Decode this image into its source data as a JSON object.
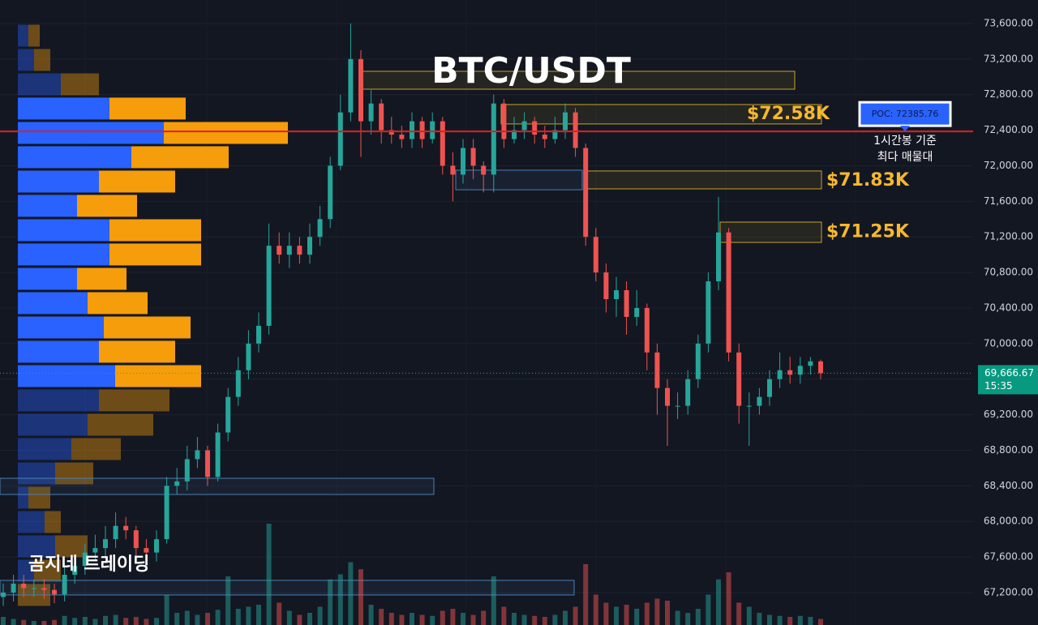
{
  "chart_data": {
    "type": "candlestick",
    "title": "BTC/USDT",
    "watermark": "곰지네 트레이딩",
    "ylim": [
      66835,
      73864
    ],
    "yticks": [
      {
        "value": 73600,
        "label": "73,600.00"
      },
      {
        "value": 73200,
        "label": "73,200.00"
      },
      {
        "value": 72800,
        "label": "72,800.00"
      },
      {
        "value": 72400,
        "label": "72,400.00"
      },
      {
        "value": 72000,
        "label": "72,000.00"
      },
      {
        "value": 71600,
        "label": "71,600.00"
      },
      {
        "value": 71200,
        "label": "71,200.00"
      },
      {
        "value": 70800,
        "label": "70,800.00"
      },
      {
        "value": 70400,
        "label": "70,400.00"
      },
      {
        "value": 70000,
        "label": "70,000.00"
      },
      {
        "value": 69600,
        "label": "69,600.00"
      },
      {
        "value": 69200,
        "label": "69,200.00"
      },
      {
        "value": 68800,
        "label": "68,800.00"
      },
      {
        "value": 68400,
        "label": "68,400.00"
      },
      {
        "value": 68000,
        "label": "68,000.00"
      },
      {
        "value": 67600,
        "label": "67,600.00"
      },
      {
        "value": 67200,
        "label": "67,200.00"
      }
    ],
    "up_color": "#26a69a",
    "down_color": "#ef5350",
    "open": [
      67150,
      67200,
      67300,
      67250,
      67250,
      67230,
      67180,
      67400,
      67500,
      67650,
      67700,
      67800,
      67950,
      67900,
      67700,
      67650,
      67800,
      68400,
      68450,
      68700,
      68800,
      68500,
      69000,
      69400,
      69700,
      70000,
      70200,
      71100,
      71000,
      71100,
      71000,
      71200,
      71400,
      72000,
      72600,
      73200,
      72500,
      72700,
      72400,
      72350,
      72300,
      72500,
      72300,
      72500,
      72000,
      71900,
      72200,
      72000,
      71900,
      72700,
      72300,
      72400,
      72500,
      72350,
      72300,
      72400,
      72600,
      72200,
      71200,
      70800,
      70500,
      70600,
      70300,
      70400,
      69900,
      69500,
      69300,
      69300,
      69600,
      70000,
      70700,
      71250,
      69900,
      69300,
      69300,
      69400,
      69600,
      69700,
      69650,
      69750,
      69800
    ],
    "high": [
      67300,
      67400,
      67400,
      67350,
      67350,
      67300,
      67500,
      67600,
      67750,
      67850,
      67950,
      68100,
      68050,
      67950,
      67800,
      67900,
      68500,
      68600,
      68850,
      68950,
      68850,
      69100,
      69500,
      69850,
      70150,
      70350,
      71350,
      71250,
      71250,
      71200,
      71350,
      71550,
      72100,
      72800,
      73600,
      73300,
      72850,
      72750,
      72550,
      72450,
      72600,
      72550,
      72600,
      72550,
      72150,
      72300,
      72300,
      72050,
      72800,
      72750,
      72550,
      72600,
      72550,
      72450,
      72550,
      72700,
      72650,
      72250,
      71300,
      70900,
      70750,
      70700,
      70600,
      70450,
      70000,
      69600,
      69450,
      69700,
      70100,
      70800,
      71650,
      71300,
      70000,
      69450,
      69500,
      69700,
      69900,
      69850,
      69850,
      69850,
      69820
    ],
    "low": [
      67050,
      67100,
      67150,
      67150,
      67130,
      67080,
      67100,
      67300,
      67400,
      67550,
      67600,
      67700,
      67800,
      67600,
      67550,
      67550,
      67750,
      68300,
      68350,
      68600,
      68400,
      68450,
      68900,
      69300,
      69600,
      69900,
      70100,
      70900,
      70850,
      70900,
      70900,
      71100,
      71300,
      71950,
      72500,
      72100,
      72350,
      72250,
      72250,
      72200,
      72200,
      72200,
      72250,
      71900,
      71600,
      71800,
      71850,
      71700,
      71700,
      72200,
      72250,
      72300,
      72250,
      72200,
      72250,
      72300,
      72100,
      71100,
      70700,
      70350,
      70300,
      70100,
      70200,
      69700,
      69200,
      68850,
      69150,
      69200,
      69500,
      69900,
      70600,
      69800,
      69100,
      68850,
      69200,
      69300,
      69500,
      69550,
      69550,
      69650,
      69600
    ],
    "close": [
      67200,
      67300,
      67250,
      67250,
      67230,
      67180,
      67400,
      67500,
      67650,
      67700,
      67800,
      67950,
      67900,
      67700,
      67650,
      67800,
      68400,
      68450,
      68700,
      68800,
      68500,
      69000,
      69400,
      69700,
      70000,
      70200,
      71100,
      71000,
      71100,
      71000,
      71200,
      71400,
      72000,
      72600,
      73200,
      72500,
      72700,
      72400,
      72350,
      72300,
      72500,
      72300,
      72500,
      72000,
      71900,
      72200,
      72000,
      71900,
      72700,
      72300,
      72400,
      72500,
      72350,
      72300,
      72400,
      72600,
      72200,
      71200,
      70800,
      70500,
      70600,
      70300,
      70400,
      69900,
      69500,
      69300,
      69300,
      69600,
      70000,
      70700,
      71250,
      69900,
      69300,
      69300,
      69400,
      69600,
      69700,
      69650,
      69750,
      69800,
      69666.67
    ],
    "volume": [
      8,
      6,
      5,
      4,
      4,
      5,
      9,
      7,
      8,
      6,
      9,
      10,
      7,
      8,
      6,
      7,
      30,
      12,
      14,
      10,
      12,
      15,
      48,
      16,
      18,
      20,
      100,
      22,
      14,
      10,
      12,
      18,
      45,
      50,
      62,
      55,
      20,
      16,
      12,
      10,
      12,
      10,
      9,
      14,
      16,
      12,
      10,
      14,
      48,
      18,
      12,
      10,
      9,
      8,
      10,
      14,
      18,
      60,
      30,
      22,
      18,
      20,
      16,
      22,
      26,
      24,
      14,
      12,
      16,
      30,
      45,
      52,
      22,
      18,
      12,
      10,
      9,
      8,
      9,
      8,
      6
    ],
    "profile": {
      "prices": [
        73463,
        73190,
        72916,
        72643,
        72369,
        72096,
        71822,
        71549,
        71275,
        71002,
        70728,
        70455,
        70181,
        69908,
        69634,
        69361,
        69087,
        68814,
        68540,
        68267,
        67993,
        67720,
        67446,
        67173
      ],
      "buy": [
        13,
        20,
        53,
        113,
        180,
        140,
        100,
        73,
        113,
        113,
        73,
        86,
        106,
        100,
        120,
        100,
        86,
        66,
        46,
        13,
        33,
        46,
        20,
        0
      ],
      "sell": [
        14,
        20,
        47,
        94,
        153,
        120,
        94,
        74,
        113,
        113,
        61,
        74,
        107,
        94,
        106,
        87,
        81,
        61,
        47,
        27,
        20,
        40,
        33,
        40
      ],
      "buy_color": "#2962ff",
      "sell_color": "#f59d0a",
      "value_area": [
        69634,
        72643
      ]
    },
    "zones": [
      {
        "low": 72861,
        "high": 73062,
        "color": "#c9a227"
      },
      {
        "low": 72470,
        "high": 72688,
        "color": "#c9a227"
      },
      {
        "low": 71740,
        "high": 71941,
        "color": "#c9a227"
      },
      {
        "low": 71138,
        "high": 71366,
        "color": "#c9a227"
      },
      {
        "low": 71730,
        "high": 71950,
        "color": "#4a7fb5"
      },
      {
        "low": 68303,
        "high": 68485,
        "color": "#4a7fb5"
      },
      {
        "low": 67173,
        "high": 67337,
        "color": "#4a7fb5"
      }
    ],
    "levels": [
      {
        "value": 72580,
        "label": "$72.58K"
      },
      {
        "value": 71830,
        "label": "$71.83K"
      },
      {
        "value": 71250,
        "label": "$71.25K"
      }
    ],
    "poc": {
      "value": 72385.76,
      "label": "POC: 72385.76",
      "note": [
        "1시간봉 기준",
        "최다 매물대"
      ]
    },
    "current": {
      "value": 69666.67,
      "label": "69,666.67",
      "countdown": "15:35"
    }
  }
}
